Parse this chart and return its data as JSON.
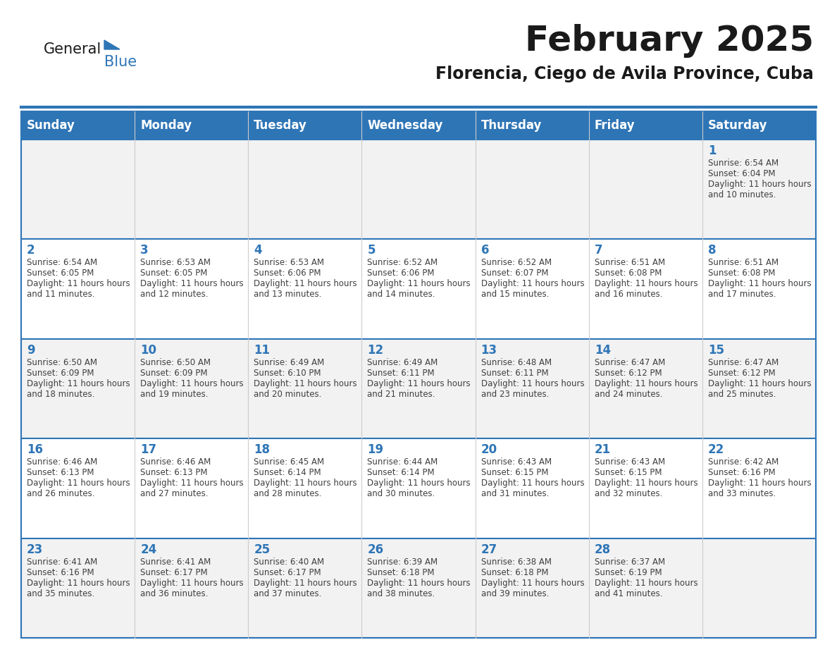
{
  "title": "February 2025",
  "subtitle": "Florencia, Ciego de Avila Province, Cuba",
  "days_of_week": [
    "Sunday",
    "Monday",
    "Tuesday",
    "Wednesday",
    "Thursday",
    "Friday",
    "Saturday"
  ],
  "header_bg": "#2E75B6",
  "header_text": "#FFFFFF",
  "row_bg_odd": "#F2F2F2",
  "row_bg_even": "#FFFFFF",
  "separator_color": "#2E75B6",
  "day_number_color": "#2E75B6",
  "cell_text_color": "#3F3F3F",
  "logo_general_color": "#1A1A1A",
  "logo_blue_color": "#2E75B6",
  "calendar_data": [
    {
      "day": 1,
      "col": 6,
      "row": 0,
      "sunrise": "6:54 AM",
      "sunset": "6:04 PM",
      "daylight": "11 hours and 10 minutes."
    },
    {
      "day": 2,
      "col": 0,
      "row": 1,
      "sunrise": "6:54 AM",
      "sunset": "6:05 PM",
      "daylight": "11 hours and 11 minutes."
    },
    {
      "day": 3,
      "col": 1,
      "row": 1,
      "sunrise": "6:53 AM",
      "sunset": "6:05 PM",
      "daylight": "11 hours and 12 minutes."
    },
    {
      "day": 4,
      "col": 2,
      "row": 1,
      "sunrise": "6:53 AM",
      "sunset": "6:06 PM",
      "daylight": "11 hours and 13 minutes."
    },
    {
      "day": 5,
      "col": 3,
      "row": 1,
      "sunrise": "6:52 AM",
      "sunset": "6:06 PM",
      "daylight": "11 hours and 14 minutes."
    },
    {
      "day": 6,
      "col": 4,
      "row": 1,
      "sunrise": "6:52 AM",
      "sunset": "6:07 PM",
      "daylight": "11 hours and 15 minutes."
    },
    {
      "day": 7,
      "col": 5,
      "row": 1,
      "sunrise": "6:51 AM",
      "sunset": "6:08 PM",
      "daylight": "11 hours and 16 minutes."
    },
    {
      "day": 8,
      "col": 6,
      "row": 1,
      "sunrise": "6:51 AM",
      "sunset": "6:08 PM",
      "daylight": "11 hours and 17 minutes."
    },
    {
      "day": 9,
      "col": 0,
      "row": 2,
      "sunrise": "6:50 AM",
      "sunset": "6:09 PM",
      "daylight": "11 hours and 18 minutes."
    },
    {
      "day": 10,
      "col": 1,
      "row": 2,
      "sunrise": "6:50 AM",
      "sunset": "6:09 PM",
      "daylight": "11 hours and 19 minutes."
    },
    {
      "day": 11,
      "col": 2,
      "row": 2,
      "sunrise": "6:49 AM",
      "sunset": "6:10 PM",
      "daylight": "11 hours and 20 minutes."
    },
    {
      "day": 12,
      "col": 3,
      "row": 2,
      "sunrise": "6:49 AM",
      "sunset": "6:11 PM",
      "daylight": "11 hours and 21 minutes."
    },
    {
      "day": 13,
      "col": 4,
      "row": 2,
      "sunrise": "6:48 AM",
      "sunset": "6:11 PM",
      "daylight": "11 hours and 23 minutes."
    },
    {
      "day": 14,
      "col": 5,
      "row": 2,
      "sunrise": "6:47 AM",
      "sunset": "6:12 PM",
      "daylight": "11 hours and 24 minutes."
    },
    {
      "day": 15,
      "col": 6,
      "row": 2,
      "sunrise": "6:47 AM",
      "sunset": "6:12 PM",
      "daylight": "11 hours and 25 minutes."
    },
    {
      "day": 16,
      "col": 0,
      "row": 3,
      "sunrise": "6:46 AM",
      "sunset": "6:13 PM",
      "daylight": "11 hours and 26 minutes."
    },
    {
      "day": 17,
      "col": 1,
      "row": 3,
      "sunrise": "6:46 AM",
      "sunset": "6:13 PM",
      "daylight": "11 hours and 27 minutes."
    },
    {
      "day": 18,
      "col": 2,
      "row": 3,
      "sunrise": "6:45 AM",
      "sunset": "6:14 PM",
      "daylight": "11 hours and 28 minutes."
    },
    {
      "day": 19,
      "col": 3,
      "row": 3,
      "sunrise": "6:44 AM",
      "sunset": "6:14 PM",
      "daylight": "11 hours and 30 minutes."
    },
    {
      "day": 20,
      "col": 4,
      "row": 3,
      "sunrise": "6:43 AM",
      "sunset": "6:15 PM",
      "daylight": "11 hours and 31 minutes."
    },
    {
      "day": 21,
      "col": 5,
      "row": 3,
      "sunrise": "6:43 AM",
      "sunset": "6:15 PM",
      "daylight": "11 hours and 32 minutes."
    },
    {
      "day": 22,
      "col": 6,
      "row": 3,
      "sunrise": "6:42 AM",
      "sunset": "6:16 PM",
      "daylight": "11 hours and 33 minutes."
    },
    {
      "day": 23,
      "col": 0,
      "row": 4,
      "sunrise": "6:41 AM",
      "sunset": "6:16 PM",
      "daylight": "11 hours and 35 minutes."
    },
    {
      "day": 24,
      "col": 1,
      "row": 4,
      "sunrise": "6:41 AM",
      "sunset": "6:17 PM",
      "daylight": "11 hours and 36 minutes."
    },
    {
      "day": 25,
      "col": 2,
      "row": 4,
      "sunrise": "6:40 AM",
      "sunset": "6:17 PM",
      "daylight": "11 hours and 37 minutes."
    },
    {
      "day": 26,
      "col": 3,
      "row": 4,
      "sunrise": "6:39 AM",
      "sunset": "6:18 PM",
      "daylight": "11 hours and 38 minutes."
    },
    {
      "day": 27,
      "col": 4,
      "row": 4,
      "sunrise": "6:38 AM",
      "sunset": "6:18 PM",
      "daylight": "11 hours and 39 minutes."
    },
    {
      "day": 28,
      "col": 5,
      "row": 4,
      "sunrise": "6:37 AM",
      "sunset": "6:19 PM",
      "daylight": "11 hours and 41 minutes."
    }
  ],
  "num_rows": 5,
  "num_cols": 7,
  "figsize": [
    11.88,
    9.18
  ],
  "dpi": 100
}
